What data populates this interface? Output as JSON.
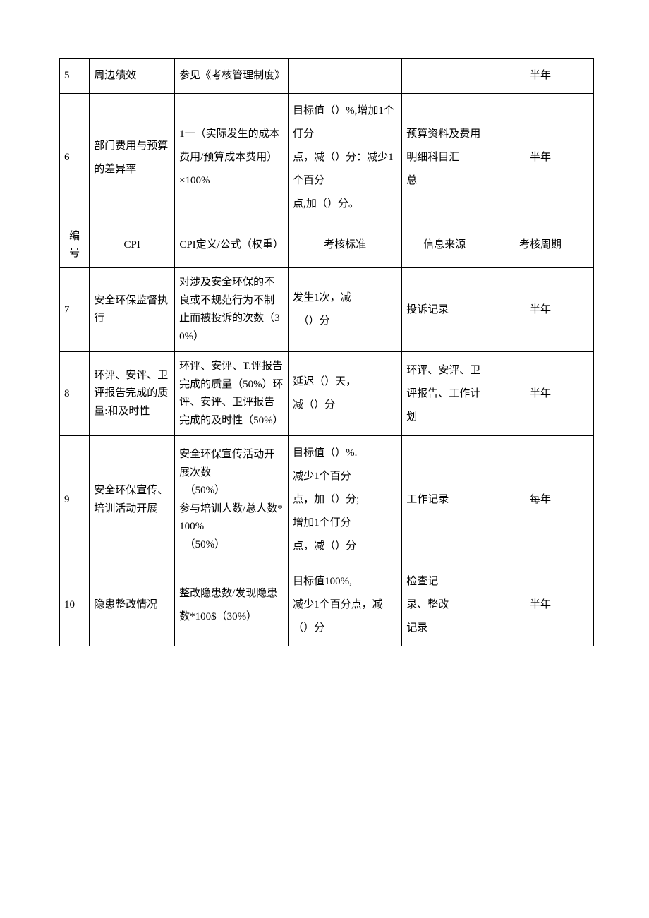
{
  "table": {
    "rows": [
      {
        "num": "5",
        "cpi": "周边绩效",
        "def": "参见《考核管理制度》",
        "std": "",
        "src": "",
        "period": "半年"
      },
      {
        "num": "6",
        "cpi": "部门费用与预算的差异率",
        "def": "1一（实际发生的成本费用/预算成本费用）\n×100%",
        "std": "目标值（）%,增加1个仃分\n点，减（）分：减少1个百分\n点,加（）分。",
        "src": "预算资料及费用明细科目汇\n总",
        "period": "半年"
      },
      {
        "header": true,
        "num": "编号",
        "cpi": "CPI",
        "def": "CPI定义/公式（权重）",
        "std": "考核标准",
        "src": "信息来源",
        "period": "考核周期"
      },
      {
        "num": "7",
        "cpi": "安全环保监督执行",
        "def": "对涉及安全环保的不良或不规范行为不制止而被投诉的次数（30%）",
        "std": "发生1次，减\n　（）分",
        "src": "投诉记录",
        "period": "半年"
      },
      {
        "num": "8",
        "cpi": "环评、安评、卫评报告完成的质量:和及时性",
        "def": "环评、安评、T.评报告完成的质量（50%）环评、安评、卫评报告完成的及时性（50%）",
        "std": "延迟（）天，\n减（）分",
        "src": "环评、安评、卫评报告、工作计划",
        "period": "半年"
      },
      {
        "num": "9",
        "cpi": "安全环保宣传、培训活动开展",
        "def": "安全环保宣传活动开展次数\n　（50%）\n参与培训人数/总人数*100%\n　（50%）",
        "std": "目标值（）%.\n减少1个百分\n点，加（）分;\n增加1个仃分\n点，减（）分",
        "src": "工作记录",
        "period": "每年"
      },
      {
        "num": "10",
        "cpi": "隐患整改情况",
        "def": "整改隐患数/发现隐患数*100$（30%）",
        "std": "目标值100%,\n减少1个百分点，减（）分",
        "src": "检查记\n录、整改\n记录",
        "period": "半年"
      }
    ]
  }
}
